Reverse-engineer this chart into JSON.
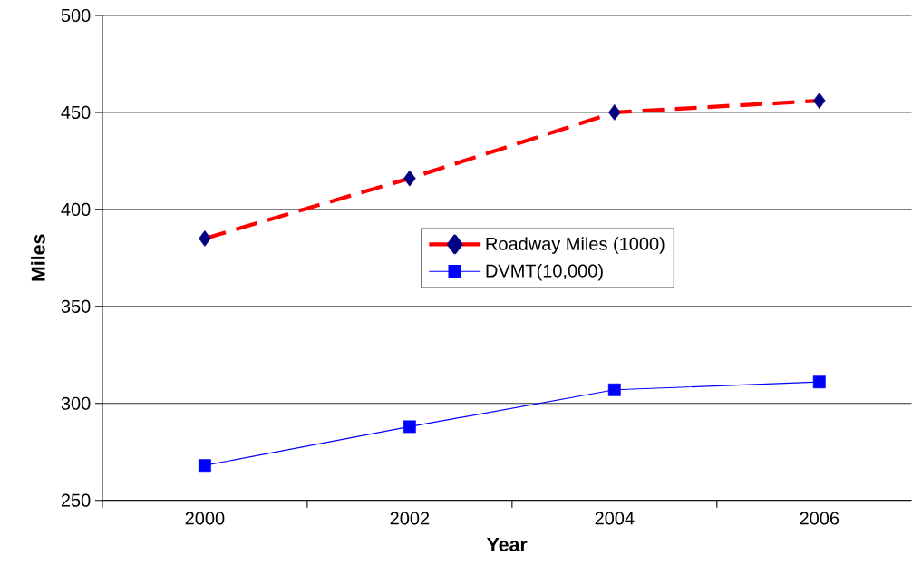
{
  "chart_data": {
    "type": "line",
    "xlabel": "Year",
    "ylabel": "Miles",
    "categories": [
      "2000",
      "2002",
      "2004",
      "2006"
    ],
    "series": [
      {
        "name": "Roadway Miles (1000)",
        "color": "#ff0000",
        "colors": [
          "#000080",
          "#000080",
          "#000080",
          "#000080"
        ],
        "marker": "diamond",
        "line_style": "dashed",
        "values": [
          385,
          416,
          450,
          456
        ]
      },
      {
        "name": "DVMT(10,000)",
        "color": "#0000ff",
        "colors": [
          "#0000ff",
          "#0000ff",
          "#0000ff",
          "#0000ff"
        ],
        "marker": "square",
        "line_style": "solid",
        "values": [
          268,
          288,
          307,
          311
        ]
      }
    ],
    "ylim": [
      250,
      500
    ],
    "yticks": [
      250,
      300,
      350,
      400,
      450,
      500
    ],
    "grid": "y",
    "legend": "center"
  }
}
